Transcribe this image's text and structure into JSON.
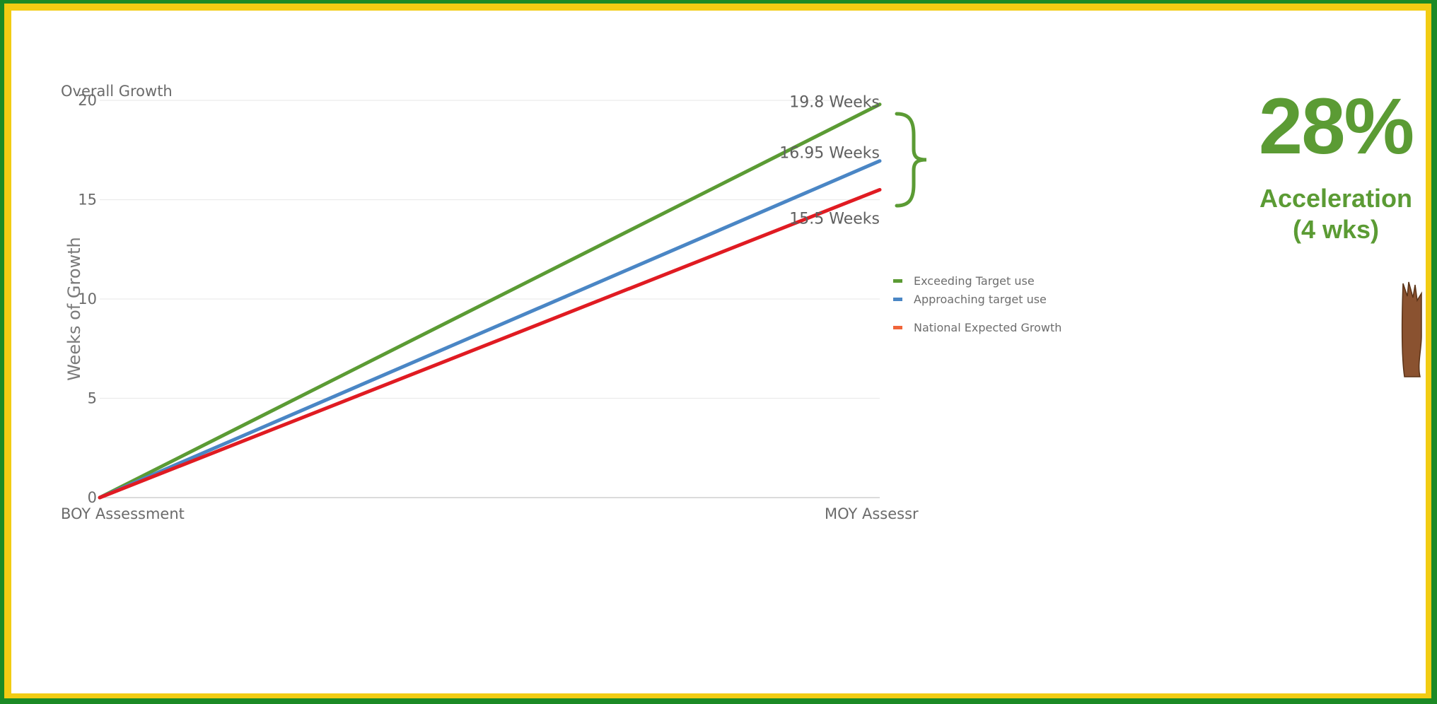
{
  "chart_data": {
    "type": "line",
    "title": "Overall Growth",
    "xlabel": "",
    "ylabel": "Weeks of Growth",
    "categories": [
      "BOY Assessment",
      "MOY Assessr"
    ],
    "ylim": [
      0,
      20
    ],
    "yticks": [
      0,
      5,
      10,
      15,
      20
    ],
    "grid": true,
    "legend_position": "right",
    "series": [
      {
        "name": "Exceeding Target use",
        "color": "#5b9b34",
        "values": [
          0,
          19.8
        ]
      },
      {
        "name": "Approaching target use",
        "color": "#4a86c5",
        "values": [
          0,
          16.95
        ]
      },
      {
        "name": "National Expected Growth",
        "color": "#e01b22",
        "legend_color": "#f0653a",
        "values": [
          0,
          15.5
        ]
      }
    ],
    "end_labels": [
      "19.8 Weeks",
      "16.95 Weeks",
      "15.5 Weeks"
    ]
  },
  "callout": {
    "percent": "28%",
    "line1": "Acceleration",
    "line2": "(4 wks)",
    "color": "#5b9b34"
  },
  "decor": {
    "hand_icon": "raised-hand-icon"
  }
}
